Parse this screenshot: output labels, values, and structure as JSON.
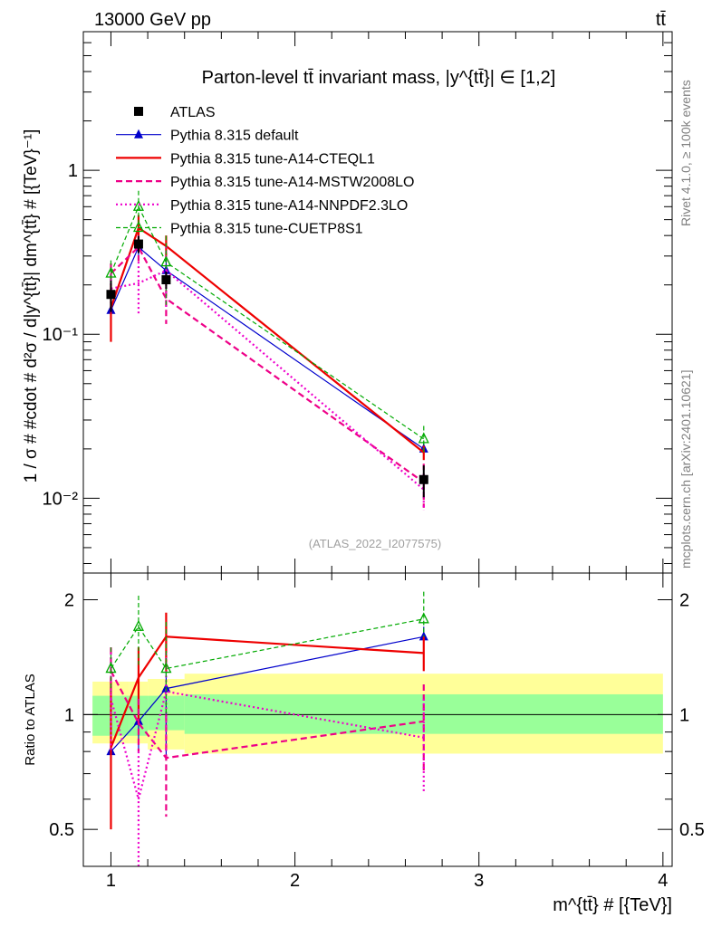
{
  "header": {
    "left": "13000 GeV pp",
    "right": "tt̄"
  },
  "side_labels": {
    "top": "Rivet 4.1.0, ≥ 100k events",
    "bottom": "mcplots.cern.ch [arXiv:2401.10621]"
  },
  "chart_data": [
    {
      "type": "line",
      "panel": "main",
      "title": "Parton-level tt̄ invariant mass, |y^{tt̄}| ∈ [1,2]",
      "ylabel": "1 / σ # #cdot # d²σ / d|y^{tt̄}| dm^{tt̄} # [{TeV}⁻¹]",
      "xlabel": "m^{tt̄} # [{TeV}]",
      "yscale": "log",
      "xlim": [
        0.85,
        4.05
      ],
      "ylim": [
        0.0035,
        7
      ],
      "y_ticks": [
        {
          "value": 0.01,
          "label": "10⁻²"
        },
        {
          "value": 0.1,
          "label": "10⁻¹"
        },
        {
          "value": 1,
          "label": "1"
        }
      ],
      "x_ticks": [
        {
          "value": 1,
          "label": "1"
        },
        {
          "value": 2,
          "label": "2"
        },
        {
          "value": 3,
          "label": "3"
        },
        {
          "value": 4,
          "label": "4"
        }
      ],
      "watermark": "(ATLAS_2022_I2077575)",
      "x": [
        1.0,
        1.15,
        1.3,
        2.7
      ],
      "data": {
        "name": "ATLAS",
        "color": "#000000",
        "bins": [
          [
            0.9,
            1.1
          ],
          [
            1.1,
            1.2
          ],
          [
            1.2,
            1.4
          ],
          [
            1.4,
            4.0
          ]
        ],
        "values": [
          0.175,
          0.355,
          0.215,
          0.013
        ],
        "rel_unc": [
          0.22,
          0.12,
          0.12,
          0.22
        ]
      },
      "series": [
        {
          "name": "Pythia 8.315 default",
          "color": "#0000cc",
          "dash": "",
          "width": 1.2,
          "marker": "triangle",
          "values": [
            0.14,
            0.34,
            0.245,
            0.02
          ],
          "rel_err": [
            0.3,
            0.12,
            0.3,
            0.08
          ]
        },
        {
          "name": "Pythia 8.315 tune-A14-CTEQL1",
          "color": "#ee0000",
          "dash": "",
          "width": 2.2,
          "marker": "none",
          "values": [
            0.145,
            0.445,
            0.345,
            0.019
          ],
          "rel_err": [
            0.38,
            0.2,
            0.16,
            0.1
          ]
        },
        {
          "name": "Pythia 8.315 tune-A14-MSTW2008LO",
          "color": "#ee0088",
          "dash": "7,4",
          "width": 2.2,
          "marker": "none",
          "values": [
            0.235,
            0.34,
            0.165,
            0.0125
          ],
          "rel_err": [
            0.15,
            0.18,
            0.3,
            0.3
          ]
        },
        {
          "name": "Pythia 8.315 tune-A14-NNPDF2.3LO",
          "color": "#ee00cc",
          "dash": "2,3",
          "width": 2.2,
          "marker": "none",
          "values": [
            0.19,
            0.205,
            0.245,
            0.0113
          ],
          "rel_err": [
            0.3,
            0.35,
            0.4,
            0.25
          ]
        },
        {
          "name": "Pythia 8.315 tune-CUETP8S1",
          "color": "#00aa00",
          "dash": "5,3",
          "width": 1.2,
          "marker": "triangle-open",
          "values": [
            0.235,
            0.6,
            0.275,
            0.023
          ],
          "rel_err": [
            0.2,
            0.25,
            0.45,
            0.2
          ]
        }
      ]
    },
    {
      "type": "line",
      "panel": "ratio",
      "ylabel": "Ratio to ATLAS",
      "yscale": "log",
      "ylim": [
        0.4,
        2.35
      ],
      "y_ticks": [
        {
          "value": 0.5,
          "label": "0.5"
        },
        {
          "value": 1,
          "label": "1"
        },
        {
          "value": 2,
          "label": "2"
        }
      ],
      "band_green": [
        [
          0.9,
          1.1,
          0.88,
          1.12
        ],
        [
          1.1,
          1.2,
          0.88,
          1.12
        ],
        [
          1.2,
          1.4,
          0.91,
          1.12
        ],
        [
          1.4,
          4.0,
          0.89,
          1.13
        ]
      ],
      "band_yellow": [
        [
          0.9,
          1.1,
          0.84,
          1.22
        ],
        [
          1.1,
          1.2,
          0.84,
          1.22
        ],
        [
          1.2,
          1.4,
          0.81,
          1.24
        ],
        [
          1.4,
          4.0,
          0.79,
          1.28
        ]
      ],
      "x": [
        1.0,
        1.15,
        1.3,
        2.7
      ],
      "series": [
        {
          "name": "Pythia 8.315 default",
          "values": [
            0.8,
            0.96,
            1.17,
            1.6
          ],
          "err_lo": [
            0.58,
            0.8,
            0.78,
            1.5
          ],
          "err_hi": [
            1.05,
            1.1,
            1.35,
            1.7
          ]
        },
        {
          "name": "Pythia 8.315 tune-A14-CTEQL1",
          "values": [
            0.82,
            1.25,
            1.6,
            1.45
          ],
          "err_lo": [
            0.5,
            0.95,
            1.3,
            1.3
          ],
          "err_hi": [
            1.25,
            1.5,
            1.85,
            1.6
          ]
        },
        {
          "name": "Pythia 8.315 tune-A14-MSTW2008LO",
          "values": [
            1.3,
            0.95,
            0.77,
            0.96
          ],
          "err_lo": [
            1.1,
            0.8,
            0.54,
            0.7
          ],
          "err_hi": [
            1.5,
            1.1,
            1.0,
            1.2
          ]
        },
        {
          "name": "Pythia 8.315 tune-A14-NNPDF2.3LO",
          "values": [
            1.1,
            0.6,
            1.15,
            0.87
          ],
          "err_lo": [
            0.8,
            0.4,
            0.8,
            0.62
          ],
          "err_hi": [
            1.45,
            0.8,
            1.45,
            1.1
          ]
        },
        {
          "name": "Pythia 8.315 tune-CUETP8S1",
          "values": [
            1.32,
            1.7,
            1.32,
            1.78
          ],
          "err_lo": [
            1.15,
            1.35,
            1.0,
            1.6
          ],
          "err_hi": [
            1.5,
            2.05,
            1.75,
            2.1
          ]
        }
      ]
    }
  ]
}
